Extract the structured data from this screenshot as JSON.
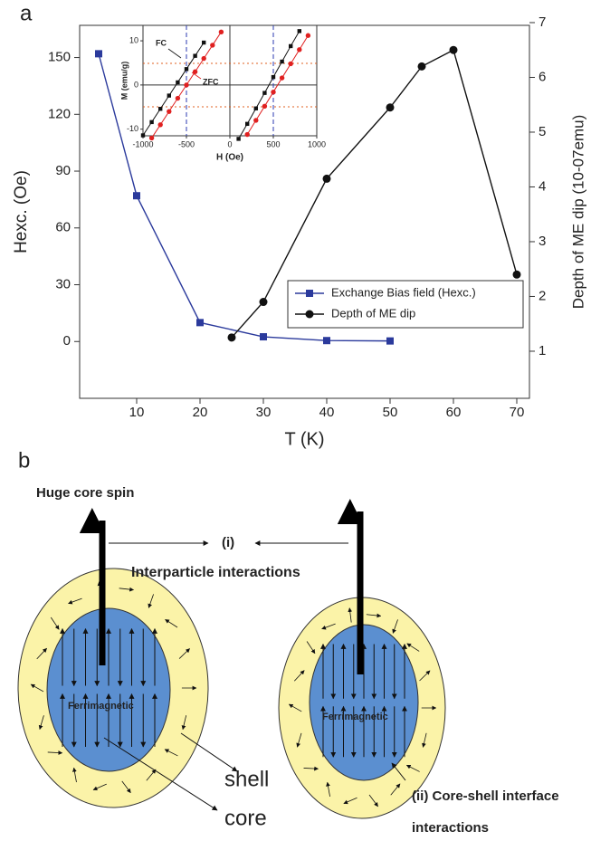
{
  "panel_labels": [
    "a",
    "b"
  ],
  "chart_data": [
    {
      "type": "line",
      "x_label": "T (K)",
      "y_label": "Hexc. (Oe)",
      "y2_label": "Depth of ME dip (10-07emu)",
      "xlim": [
        1,
        72
      ],
      "xticks": [
        10,
        20,
        30,
        40,
        50,
        60,
        70
      ],
      "ylim": [
        -30,
        167
      ],
      "yticks": [
        0,
        30,
        60,
        90,
        120,
        150
      ],
      "y2lim": [
        0.14,
        6.95
      ],
      "y2ticks": [
        1,
        2,
        3,
        4,
        5,
        6,
        7
      ],
      "legend": "lower right",
      "series": [
        {
          "name": "Exchange Bias field (Hexc.)",
          "color": "#2b3a9c",
          "marker": "square",
          "x": [
            4,
            10,
            20,
            30,
            40,
            50
          ],
          "values": [
            152,
            77,
            10,
            2.5,
            0.5,
            0.3
          ]
        },
        {
          "name": "Depth of ME dip",
          "color": "#111111",
          "marker": "circle",
          "axis": "y2",
          "x": [
            25,
            30,
            40,
            50,
            55,
            60,
            70
          ],
          "values": [
            1.25,
            1.9,
            4.15,
            5.45,
            6.2,
            6.5,
            2.4
          ]
        }
      ]
    },
    {
      "type": "line",
      "x_label": "H (Oe)",
      "y_label": "M (emu/g)",
      "xlim": [
        -1000,
        1000
      ],
      "xticks": [
        -1000,
        -500,
        0,
        500,
        1000
      ],
      "ylim": [
        -11.5,
        13.5
      ],
      "yticks": [
        -10,
        0,
        10
      ],
      "series": [
        {
          "name": "FC",
          "color": "#111111",
          "marker": "square",
          "x": [
            -1000,
            -900,
            -800,
            -700,
            -600,
            -500,
            -400,
            -300,
            null,
            100,
            200,
            300,
            400,
            500,
            600,
            700,
            800
          ],
          "values": [
            -11.4,
            -8.4,
            -5.4,
            -2.4,
            0.6,
            3.6,
            6.6,
            9.6,
            null,
            -12.2,
            -8.8,
            -5.3,
            -1.8,
            1.8,
            5.3,
            8.8,
            12.2
          ]
        },
        {
          "name": "ZFC",
          "color": "#e02020",
          "marker": "circle",
          "x": [
            -900,
            -800,
            -700,
            -600,
            -500,
            -400,
            -300,
            -200,
            -100,
            null,
            200,
            300,
            400,
            500,
            600,
            700,
            800,
            900
          ],
          "values": [
            -12,
            -9,
            -6,
            -3,
            0,
            3,
            6,
            9,
            12,
            null,
            -11.2,
            -8,
            -4.8,
            -1.6,
            1.6,
            4.8,
            8,
            11.2
          ]
        }
      ]
    }
  ],
  "diagram": {
    "core_spin": "Huge core spin",
    "interaction_i": "(i)",
    "interaction_i_label": "Interparticle interactions",
    "particles": [
      {
        "core_label": "Ferrimagnetic"
      },
      {
        "core_label": "Ferrimagnetic"
      }
    ],
    "shell": "shell",
    "core": "core",
    "interaction_ii": "(ii) Core-shell interface",
    "interaction_ii_cont": "interactions"
  }
}
